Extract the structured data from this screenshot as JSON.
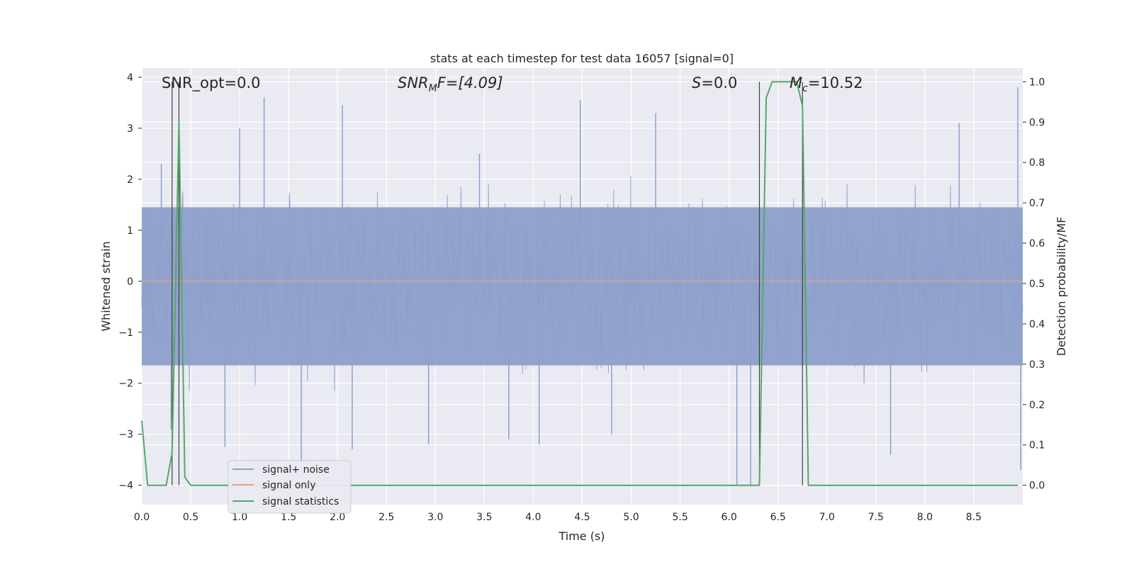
{
  "chart_data": {
    "type": "line",
    "title": "stats at each timestep for test data 16057 [signal=0]",
    "xlabel": "Time (s)",
    "ylabel_left": "Whitened strain",
    "ylabel_right": "Detection probability/MF",
    "xlim": [
      0.0,
      9.0
    ],
    "ylim_left": [
      -4.38,
      4.18
    ],
    "ylim_right": [
      -0.048,
      1.034
    ],
    "x_ticks": [
      "0.0",
      "0.5",
      "1.0",
      "1.5",
      "2.0",
      "2.5",
      "3.0",
      "3.5",
      "4.0",
      "4.5",
      "5.0",
      "5.5",
      "6.0",
      "6.5",
      "7.0",
      "7.5",
      "8.0",
      "8.5"
    ],
    "y_ticks_left": [
      "−4",
      "−3",
      "−2",
      "−1",
      "0",
      "1",
      "2",
      "3",
      "4"
    ],
    "y_ticks_right": [
      "0.0",
      "0.1",
      "0.2",
      "0.3",
      "0.4",
      "0.5",
      "0.6",
      "0.7",
      "0.8",
      "0.9",
      "1.0"
    ],
    "grid": true,
    "legend_position": "lower-left",
    "annotations": {
      "snr_opt": "SNR_opt=0.0",
      "snr_mf_label": "SNR",
      "snr_mf_sub": "M",
      "snr_mf_rest": "F=[4.09]",
      "s_label": "S",
      "s_value": "=0.0",
      "mc_label": "M",
      "mc_sub": "c",
      "mc_value": "=10.52"
    },
    "vlines_x": [
      0.31,
      0.38,
      6.31,
      6.75
    ],
    "series": [
      {
        "name": "signal+ noise",
        "color": "#8da0cb",
        "description_range": [
          -4.0,
          3.8
        ],
        "spikes": [
          {
            "x": 0.2,
            "y": 2.3
          },
          {
            "x": 0.3,
            "y": -2.9
          },
          {
            "x": 0.85,
            "y": -3.25
          },
          {
            "x": 1.0,
            "y": 3.0
          },
          {
            "x": 1.25,
            "y": 3.6
          },
          {
            "x": 1.63,
            "y": -3.6
          },
          {
            "x": 2.05,
            "y": 3.45
          },
          {
            "x": 2.15,
            "y": -3.3
          },
          {
            "x": 2.93,
            "y": -3.2
          },
          {
            "x": 3.45,
            "y": 2.5
          },
          {
            "x": 3.75,
            "y": -3.1
          },
          {
            "x": 4.06,
            "y": -3.2
          },
          {
            "x": 4.48,
            "y": 3.55
          },
          {
            "x": 4.8,
            "y": -3.0
          },
          {
            "x": 5.25,
            "y": 3.3
          },
          {
            "x": 6.08,
            "y": -4.0
          },
          {
            "x": 6.22,
            "y": -4.0
          },
          {
            "x": 7.65,
            "y": -3.4
          },
          {
            "x": 8.35,
            "y": 3.1
          },
          {
            "x": 8.95,
            "y": 3.8
          },
          {
            "x": 8.98,
            "y": -3.7
          }
        ]
      },
      {
        "name": "signal only",
        "color": "#e5a07a",
        "x": [
          0.0,
          9.0
        ],
        "y": [
          0.0,
          0.0
        ]
      },
      {
        "name": "signal statistics",
        "color": "#55a868",
        "axis": "right",
        "x": [
          0.0,
          0.06,
          0.12,
          0.19,
          0.25,
          0.31,
          0.38,
          0.44,
          0.5,
          6.31,
          6.38,
          6.44,
          6.5,
          6.56,
          6.62,
          6.69,
          6.75,
          6.81,
          6.88,
          8.95
        ],
        "y": [
          0.16,
          0.0,
          0.0,
          0.0,
          0.0,
          0.08,
          0.9,
          0.02,
          0.0,
          0.0,
          0.96,
          1.0,
          1.0,
          1.0,
          1.0,
          1.0,
          0.94,
          0.0,
          0.0,
          0.0
        ]
      }
    ]
  }
}
